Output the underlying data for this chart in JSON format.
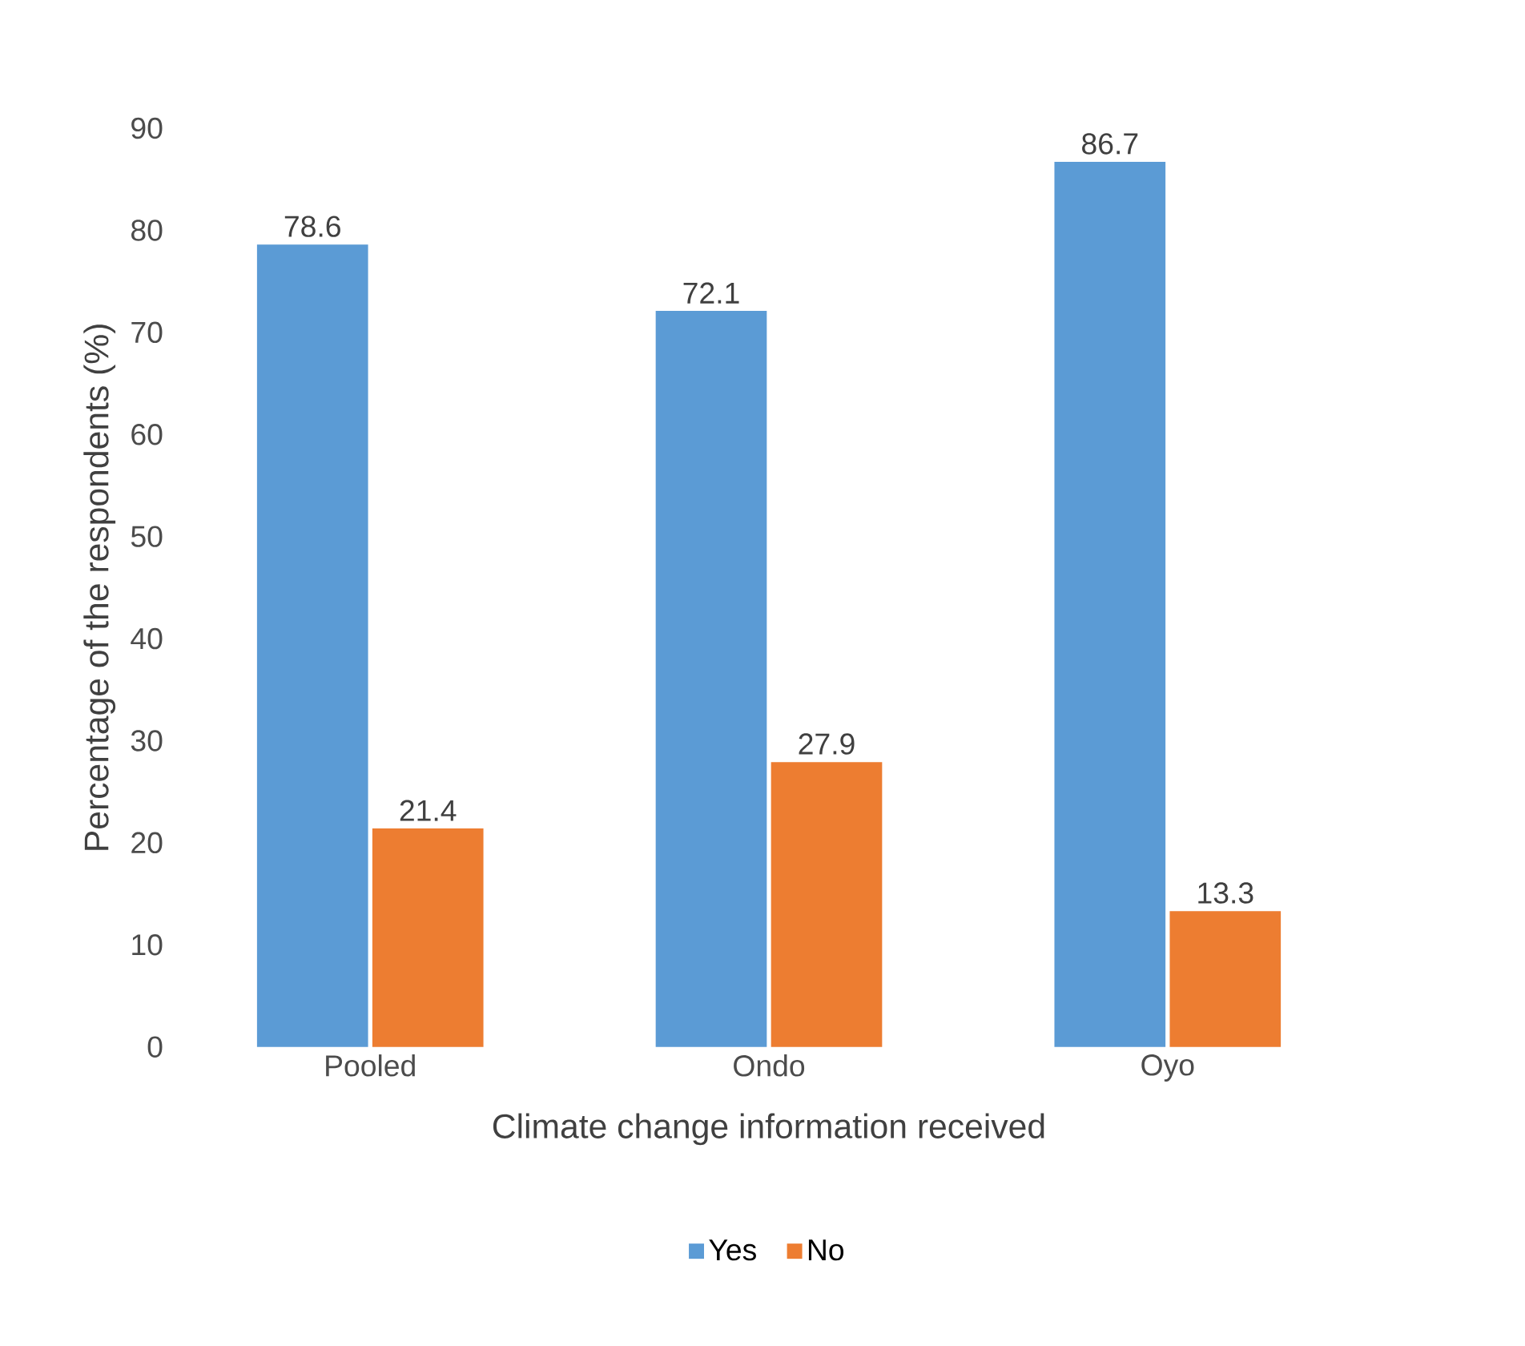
{
  "chart_data": {
    "type": "bar",
    "xlabel": "Climate change information received",
    "ylabel": "Percentage of the respondents (%)",
    "categories": [
      "Pooled",
      "Ondo",
      "Oyo"
    ],
    "series": [
      {
        "name": "Yes",
        "color": "#5b9bd5",
        "values": [
          78.6,
          72.1,
          86.7
        ]
      },
      {
        "name": "No",
        "color": "#ed7d31",
        "values": [
          21.4,
          27.9,
          13.3
        ]
      }
    ],
    "ylim": [
      0,
      90
    ],
    "yticks": [
      0,
      10,
      20,
      30,
      40,
      50,
      60,
      70,
      80,
      90
    ],
    "data_labels": true,
    "legend": "bottom",
    "grid": false
  }
}
